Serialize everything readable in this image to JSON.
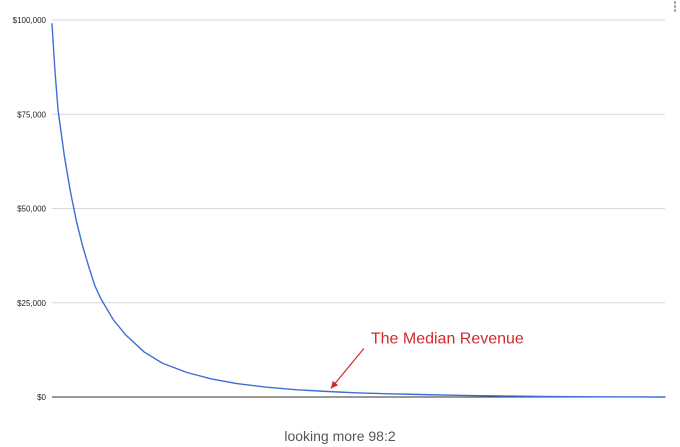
{
  "chart_data": {
    "type": "line",
    "title": "",
    "xlabel": "",
    "ylabel": "",
    "ylim": [
      0,
      100000
    ],
    "y_tick_labels": [
      "$0",
      "$25,000",
      "$50,000",
      "$75,000",
      "$100,000"
    ],
    "y_tick_values": [
      0,
      25000,
      50000,
      75000,
      100000
    ],
    "x_axis_labels_shown": false,
    "grid": true,
    "legend": "none",
    "series_color": "#3c6fd6",
    "series": [
      {
        "x": [
          0,
          0.5,
          1,
          1.5,
          2,
          3,
          4,
          5,
          6,
          7,
          8,
          10,
          12,
          15,
          18,
          22,
          26,
          30,
          35,
          40,
          45,
          50,
          55,
          60,
          65,
          70,
          75,
          80,
          85,
          90,
          95,
          100
        ],
        "values": [
          99000,
          86000,
          76000,
          70000,
          64000,
          54500,
          46500,
          40000,
          34500,
          29500,
          26000,
          20500,
          16500,
          12000,
          9000,
          6500,
          4800,
          3600,
          2600,
          1900,
          1450,
          1100,
          850,
          650,
          480,
          340,
          230,
          150,
          90,
          50,
          25,
          10
        ]
      }
    ],
    "annotation": {
      "text": "The Median Revenue",
      "color": "#d12b2b",
      "x": 45,
      "y": 1450
    },
    "caption": "looking more 98:2"
  }
}
